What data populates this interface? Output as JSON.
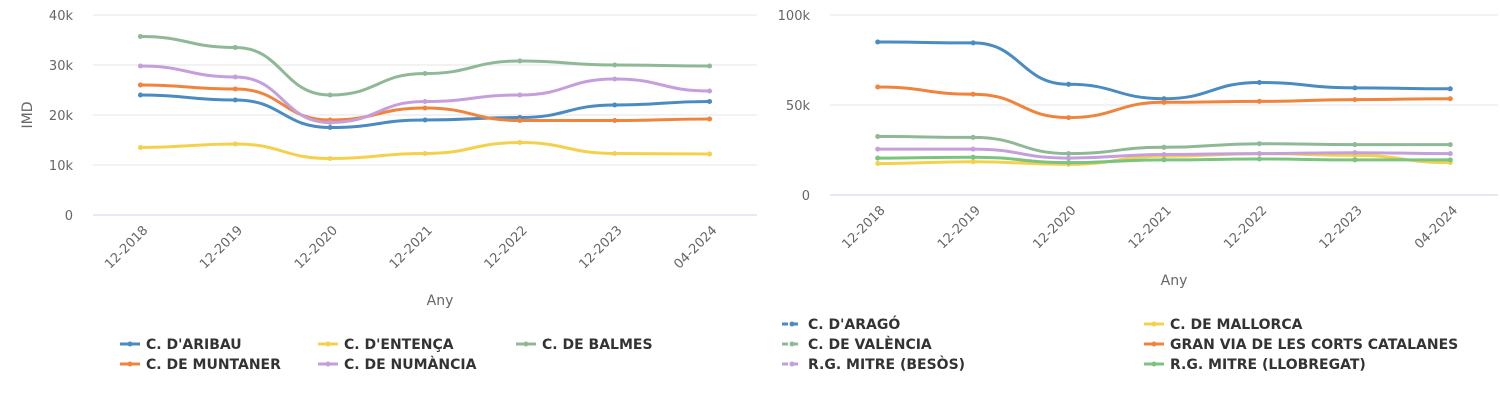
{
  "chart_data": [
    {
      "type": "line",
      "title": "",
      "xlabel": "Any",
      "ylabel": "IMD",
      "categories": [
        "12-2018",
        "12-2019",
        "12-2020",
        "12-2021",
        "12-2022",
        "12-2023",
        "04-2024"
      ],
      "ylim": [
        0,
        40000
      ],
      "yticks": [
        0,
        10000,
        20000,
        30000,
        40000
      ],
      "ytick_labels": [
        "0",
        "10k",
        "20k",
        "30k",
        "40k"
      ],
      "grid": true,
      "smooth": true,
      "legend_position": "bottom",
      "series": [
        {
          "name": "C. D'ARIBAU",
          "color": "#4a8bc2",
          "dash": "solid",
          "values": [
            24000,
            23000,
            17500,
            19000,
            19500,
            22000,
            22700
          ]
        },
        {
          "name": "C. D'ENTENÇA",
          "color": "#f5d04c",
          "dash": "solid",
          "values": [
            13500,
            14200,
            11300,
            12300,
            14500,
            12300,
            12200
          ]
        },
        {
          "name": "C. DE BALMES",
          "color": "#8fb996",
          "dash": "solid",
          "values": [
            35700,
            33500,
            24000,
            28300,
            30800,
            30000,
            29800
          ]
        },
        {
          "name": "C. DE MUNTANER",
          "color": "#f0843c",
          "dash": "solid",
          "values": [
            26000,
            25200,
            19000,
            21400,
            18900,
            18900,
            19200
          ]
        },
        {
          "name": "C. DE NUMÀNCIA",
          "color": "#c59fdc",
          "dash": "solid",
          "values": [
            29800,
            27600,
            18500,
            22700,
            24000,
            27200,
            24800
          ]
        }
      ]
    },
    {
      "type": "line",
      "title": "",
      "xlabel": "Any",
      "ylabel": "",
      "categories": [
        "12-2018",
        "12-2019",
        "12-2020",
        "12-2021",
        "12-2022",
        "12-2023",
        "04-2024"
      ],
      "ylim": [
        0,
        100000
      ],
      "yticks": [
        0,
        50000,
        100000
      ],
      "ytick_labels": [
        "0",
        "50k",
        "100k"
      ],
      "grid": true,
      "smooth": true,
      "legend_position": "bottom",
      "series": [
        {
          "name": "C. D'ARAGÓ",
          "color": "#4a8bc2",
          "dash": "dashed",
          "values": [
            85000,
            84500,
            61500,
            53500,
            62500,
            59500,
            59000
          ]
        },
        {
          "name": "C. DE MALLORCA",
          "color": "#f5d04c",
          "dash": "solid",
          "values": [
            17500,
            18500,
            17000,
            21500,
            23000,
            22000,
            18000
          ]
        },
        {
          "name": "C. DE VALÈNCIA",
          "color": "#8fb996",
          "dash": "dashed",
          "values": [
            32500,
            32000,
            23000,
            26500,
            28500,
            28000,
            28000
          ]
        },
        {
          "name": "GRAN VIA DE LES CORTS CATALANES",
          "color": "#f0843c",
          "dash": "solid",
          "values": [
            60000,
            56000,
            43000,
            51500,
            52000,
            53000,
            53500
          ]
        },
        {
          "name": "R.G. MITRE (BESÒS)",
          "color": "#c59fdc",
          "dash": "dashed",
          "values": [
            25500,
            25500,
            20500,
            22500,
            23000,
            23500,
            23000
          ]
        },
        {
          "name": "R.G. MITRE (LLOBREGAT)",
          "color": "#7ac47f",
          "dash": "solid",
          "values": [
            20500,
            21000,
            18000,
            19500,
            20000,
            19500,
            19500
          ]
        }
      ]
    }
  ]
}
